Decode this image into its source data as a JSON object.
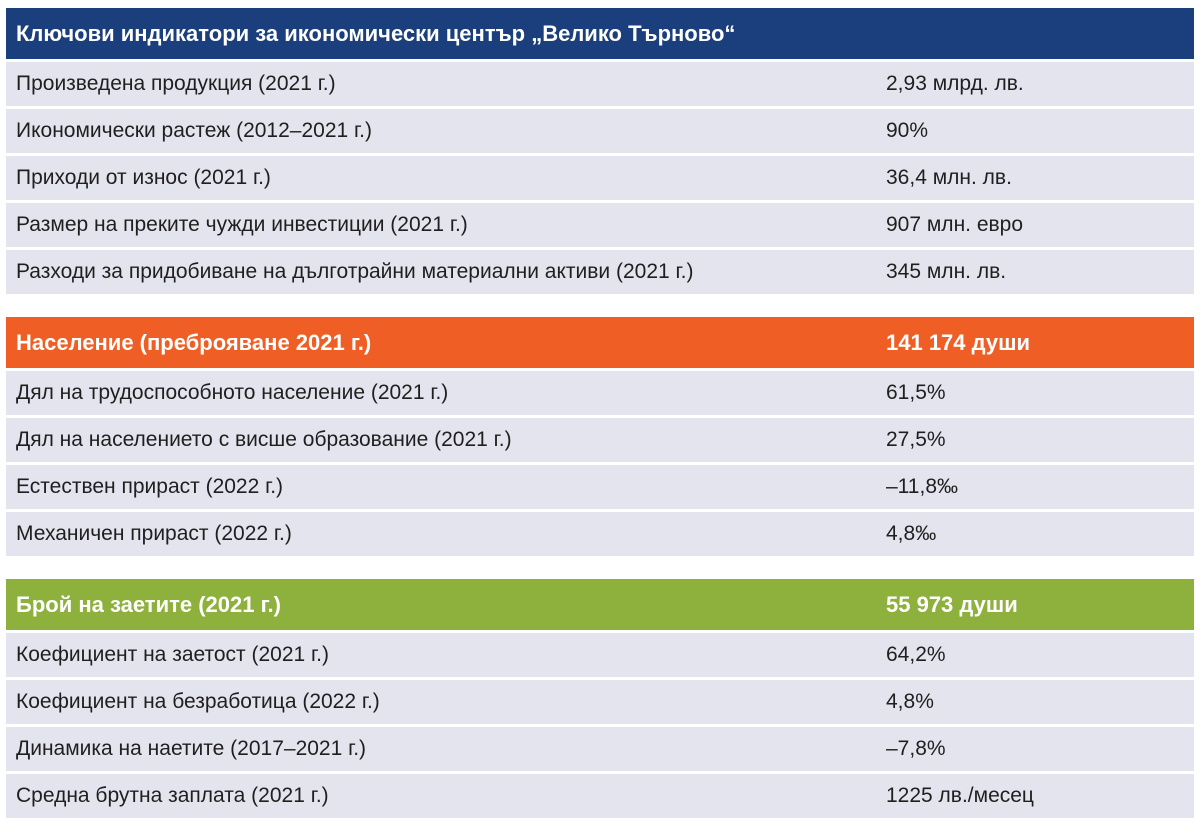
{
  "sections": [
    {
      "title": "Ключови индикатори за икономически център „Велико Търново“",
      "value": "",
      "color": "#1b3f7c",
      "rows": [
        {
          "label": "Произведена продукция (2021 г.)",
          "value": "2,93 млрд. лв."
        },
        {
          "label": "Икономически растеж (2012–2021 г.)",
          "value": "90%"
        },
        {
          "label": "Приходи от износ (2021 г.)",
          "value": "36,4 млн. лв."
        },
        {
          "label": "Размер на преките чужди инвестиции (2021 г.)",
          "value": "907 млн. евро"
        },
        {
          "label": "Разходи за придобиване на дълготрайни материални активи (2021 г.)",
          "value": "345 млн. лв."
        }
      ]
    },
    {
      "title": "Население (преброяване 2021 г.)",
      "value": "141 174 души",
      "color": "#ef5f25",
      "rows": [
        {
          "label": "Дял на трудоспособното население (2021 г.)",
          "value": "61,5%"
        },
        {
          "label": "Дял на населението с висше образование (2021 г.)",
          "value": "27,5%"
        },
        {
          "label": "Естествен прираст (2022 г.)",
          "value": "–11,8‰"
        },
        {
          "label": "Механичен прираст (2022 г.)",
          "value": "4,8‰"
        }
      ]
    },
    {
      "title": "Брой на заетите (2021 г.)",
      "value": "55 973 души",
      "color": "#8eb13d",
      "rows": [
        {
          "label": "Коефициент на заетост (2021 г.)",
          "value": "64,2%"
        },
        {
          "label": "Коефициент на безработица (2022 г.)",
          "value": "4,8%"
        },
        {
          "label": "Динамика на наетите (2017–2021 г.)",
          "value": "–7,8%"
        },
        {
          "label": "Средна брутна заплата (2021 г.)",
          "value": "1225 лв./месец"
        }
      ]
    }
  ]
}
